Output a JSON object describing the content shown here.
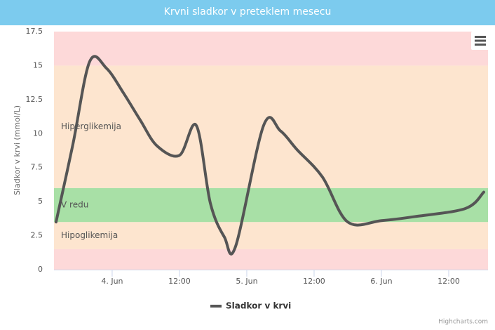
{
  "chart_data": {
    "type": "line",
    "title": "Krvni sladkor v preteklem mesecu",
    "y_axis_label": "Sladkor v krvi (mmol/L)",
    "x": [
      "Jun 3 14:00",
      "Jun 3 17:00",
      "Jun 3 20:00",
      "Jun 3 23:00",
      "Jun 4 02:00",
      "Jun 4 05:00",
      "Jun 4 08:00",
      "Jun 4 12:00",
      "Jun 4 15:00",
      "Jun 4 17:30",
      "Jun 4 20:00",
      "Jun 4 22:00",
      "Jun 5 03:00",
      "Jun 5 06:00",
      "Jun 5 09:00",
      "Jun 5 13:30",
      "Jun 5 18:00",
      "Jun 6 00:00",
      "Jun 6 06:00",
      "Jun 6 15:00",
      "Jun 6 18:15"
    ],
    "series": [
      {
        "name": "Sladkor v krvi",
        "color": "#555555",
        "values": [
          3.5,
          9.2,
          15.3,
          14.8,
          13,
          11,
          9.1,
          8.4,
          10.6,
          4.9,
          2.4,
          1.7,
          10.6,
          10.2,
          8.8,
          6.8,
          3.5,
          3.6,
          3.9,
          4.5,
          5.7
        ]
      }
    ],
    "xlim": [
      "Jun 3 13:38",
      "Jun 6 19:00"
    ],
    "xticks": [
      {
        "value": "Jun 4 00:00",
        "label": "4. Jun"
      },
      {
        "value": "Jun 4 12:00",
        "label": "12:00"
      },
      {
        "value": "Jun 5 00:00",
        "label": "5. Jun"
      },
      {
        "value": "Jun 5 12:00",
        "label": "12:00"
      },
      {
        "value": "Jun 6 00:00",
        "label": "6. Jun"
      },
      {
        "value": "Jun 6 12:00",
        "label": "12:00"
      }
    ],
    "ylim": [
      0,
      17.5
    ],
    "yticks": [
      0,
      2.5,
      5,
      7.5,
      10,
      12.5,
      15,
      17.5
    ],
    "bands": [
      {
        "from": 0,
        "to": 1.5,
        "color": "#fdd9d9"
      },
      {
        "from": 1.5,
        "to": 3.5,
        "color": "#fde5cf",
        "label": "Hipoglikemija"
      },
      {
        "from": 3.5,
        "to": 6,
        "color": "#a8e0a6",
        "label": "V redu"
      },
      {
        "from": 6,
        "to": 15,
        "color": "#fde5cf",
        "label": "Hiperglikemija"
      },
      {
        "from": 15,
        "to": 17.5,
        "color": "#fdd9d9"
      }
    ],
    "credits": "Highcharts.com"
  }
}
